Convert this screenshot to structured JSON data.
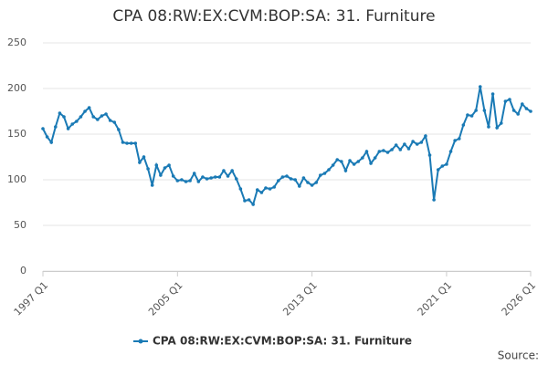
{
  "chart_data": {
    "type": "line",
    "title": "CPA 08:RW:EX:CVM:BOP:SA: 31. Furniture",
    "source": "Source:",
    "x": [
      1997,
      1997.25,
      1997.5,
      1997.75,
      1998,
      1998.25,
      1998.5,
      1998.75,
      1999,
      1999.25,
      1999.5,
      1999.75,
      2000,
      2000.25,
      2000.5,
      2000.75,
      2001,
      2001.25,
      2001.5,
      2001.75,
      2002,
      2002.25,
      2002.5,
      2002.75,
      2003,
      2003.25,
      2003.5,
      2003.75,
      2004,
      2004.25,
      2004.5,
      2004.75,
      2005,
      2005.25,
      2005.5,
      2005.75,
      2006,
      2006.25,
      2006.5,
      2006.75,
      2007,
      2007.25,
      2007.5,
      2007.75,
      2008,
      2008.25,
      2008.5,
      2008.75,
      2009,
      2009.25,
      2009.5,
      2009.75,
      2010,
      2010.25,
      2010.5,
      2010.75,
      2011,
      2011.25,
      2011.5,
      2011.75,
      2012,
      2012.25,
      2012.5,
      2012.75,
      2013,
      2013.25,
      2013.5,
      2013.75,
      2014,
      2014.25,
      2014.5,
      2014.75,
      2015,
      2015.25,
      2015.5,
      2015.75,
      2016,
      2016.25,
      2016.5,
      2016.75,
      2017,
      2017.25,
      2017.5,
      2017.75,
      2018,
      2018.25,
      2018.5,
      2018.75,
      2019,
      2019.25,
      2019.5,
      2019.75,
      2020,
      2020.25,
      2020.5,
      2020.75,
      2021,
      2021.25,
      2021.5,
      2021.75,
      2022,
      2022.25,
      2022.5,
      2022.75,
      2023,
      2023.25,
      2023.5,
      2023.75,
      2024,
      2024.25,
      2024.5,
      2024.75,
      2025,
      2025.25,
      2025.5,
      2025.75,
      2026
    ],
    "series": [
      {
        "name": "CPA 08:RW:EX:CVM:BOP:SA: 31. Furniture",
        "color": "#1a7ab5",
        "values": [
          156,
          147,
          141,
          158,
          173,
          169,
          156,
          161,
          164,
          169,
          175,
          179,
          169,
          166,
          170,
          172,
          165,
          163,
          155,
          141,
          140,
          140,
          140,
          119,
          125,
          112,
          94,
          116,
          105,
          113,
          116,
          104,
          99,
          100,
          98,
          99,
          107,
          98,
          103,
          101,
          102,
          103,
          103,
          110,
          104,
          110,
          101,
          90,
          77,
          78,
          73,
          89,
          86,
          91,
          90,
          92,
          99,
          103,
          104,
          101,
          100,
          93,
          102,
          97,
          94,
          97,
          105,
          107,
          111,
          116,
          122,
          120,
          110,
          121,
          117,
          120,
          124,
          131,
          118,
          124,
          131,
          132,
          130,
          133,
          138,
          133,
          139,
          134,
          142,
          139,
          141,
          148,
          127,
          78,
          111,
          115,
          117,
          131,
          143,
          145,
          160,
          171,
          170,
          176,
          202,
          176,
          158,
          194,
          157,
          162,
          186,
          188,
          176,
          172,
          183,
          178,
          175
        ]
      }
    ],
    "xlim": [
      1997,
      2026
    ],
    "xticks": [
      {
        "value": 1997,
        "label": "1997 Q1"
      },
      {
        "value": 2005,
        "label": "2005 Q1"
      },
      {
        "value": 2013,
        "label": "2013 Q1"
      },
      {
        "value": 2021,
        "label": "2021 Q1"
      },
      {
        "value": 2026,
        "label": "2026 Q1"
      }
    ],
    "ylim": [
      0,
      250
    ],
    "yticks": [
      0,
      50,
      100,
      150,
      200,
      250
    ],
    "grid": true,
    "legend": "bottom"
  }
}
